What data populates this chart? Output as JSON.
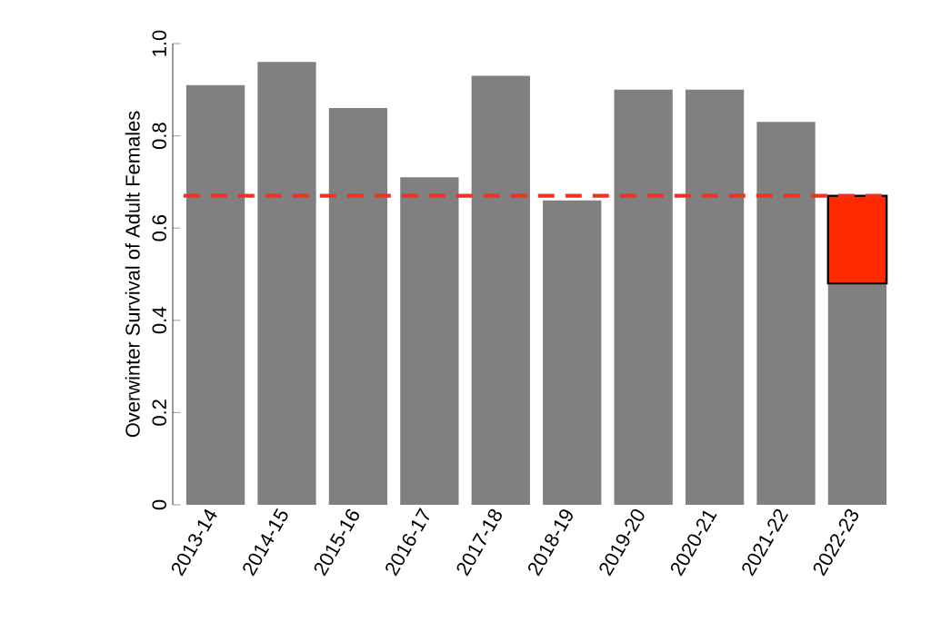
{
  "chart_data": {
    "type": "bar",
    "ylabel": "Overwinter Survival of Adult Females",
    "categories": [
      "2013-14",
      "2014-15",
      "2015-16",
      "2016-17",
      "2017-18",
      "2018-19",
      "2019-20",
      "2020-21",
      "2021-22",
      "2022-23"
    ],
    "stacked": true,
    "series": [
      {
        "color": "#808080",
        "values": [
          0.91,
          0.96,
          0.86,
          0.71,
          0.93,
          0.66,
          0.9,
          0.9,
          0.83,
          0.48
        ]
      },
      {
        "color": "#ff2a00",
        "values": [
          null,
          null,
          null,
          null,
          null,
          null,
          null,
          null,
          null,
          0.19
        ]
      }
    ],
    "ylim": [
      0,
      1
    ],
    "yticks": [
      0,
      {
        "value": 0.2,
        "label": "0.2"
      },
      {
        "value": 0.4,
        "label": "0.4"
      },
      {
        "value": 0.6,
        "label": "0.6"
      },
      {
        "value": 0.8,
        "label": "0.8"
      },
      {
        "value": 1,
        "label": "1.0"
      }
    ],
    "ref_lines": [
      {
        "axis": "y",
        "value": 0.67,
        "color": "#ee3322",
        "line_style": "dashed"
      }
    ]
  }
}
